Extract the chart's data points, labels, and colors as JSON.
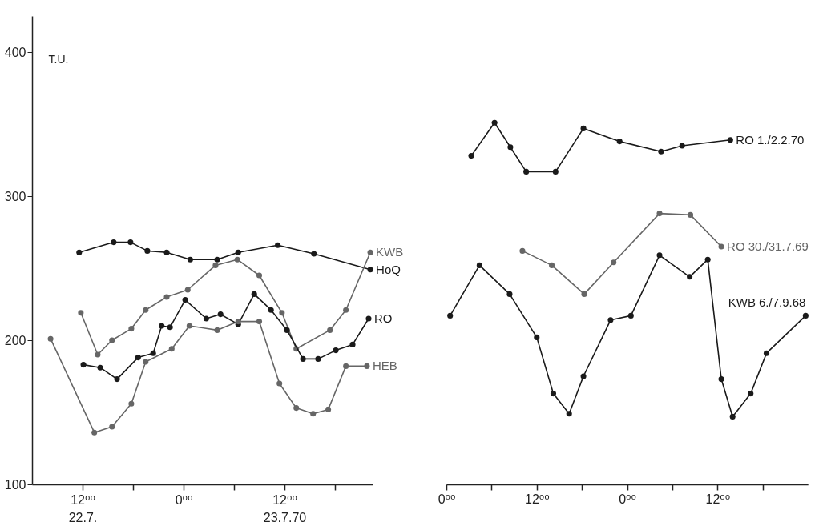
{
  "chart_data": [
    {
      "type": "line",
      "ylabel": "T.U.",
      "marker": "circle",
      "xlim": [
        "1970-07-22T06:00",
        "1970-07-23T22:30"
      ],
      "ylim": [
        100,
        425
      ],
      "xticks": [
        {
          "value": "1970-07-22T12:00",
          "label": "12⁰⁰\n22.7."
        },
        {
          "value": "1970-07-22T18:00",
          "label": null
        },
        {
          "value": "1970-07-23T00:00",
          "label": "0⁰⁰"
        },
        {
          "value": "1970-07-23T06:00",
          "label": null
        },
        {
          "value": "1970-07-23T12:00",
          "label": "12⁰⁰\n23.7.70"
        },
        {
          "value": "1970-07-23T18:00",
          "label": null
        }
      ],
      "yticks": [
        100,
        200,
        300,
        400
      ],
      "series": [
        {
          "name": "HoQ",
          "color": "#1a1a1a",
          "x": [
            "1970-07-22T11:36",
            "1970-07-22T15:42",
            "1970-07-22T17:42",
            "1970-07-22T19:42",
            "1970-07-22T22:00",
            "1970-07-23T00:48",
            "1970-07-23T04:00",
            "1970-07-23T06:30",
            "1970-07-23T11:12",
            "1970-07-23T15:30",
            "1970-07-23T22:12"
          ],
          "values": [
            261,
            268,
            268,
            262,
            261,
            256,
            256,
            261,
            266,
            260,
            249
          ]
        },
        {
          "name": "KWB",
          "color": "#666666",
          "x": [
            "1970-07-22T11:48",
            "1970-07-22T13:48",
            "1970-07-22T15:30",
            "1970-07-22T17:48",
            "1970-07-22T19:30",
            "1970-07-22T22:00",
            "1970-07-23T00:30",
            "1970-07-23T03:48",
            "1970-07-23T06:24",
            "1970-07-23T09:00",
            "1970-07-23T11:42",
            "1970-07-23T13:24",
            "1970-07-23T17:24",
            "1970-07-23T19:18",
            "1970-07-23T22:12"
          ],
          "values": [
            219,
            190,
            200,
            208,
            221,
            230,
            235,
            252,
            256,
            245,
            219,
            194,
            207,
            221,
            261
          ]
        },
        {
          "name": "RO",
          "color": "#1a1a1a",
          "x": [
            "1970-07-22T12:06",
            "1970-07-22T14:06",
            "1970-07-22T16:06",
            "1970-07-22T18:36",
            "1970-07-22T20:24",
            "1970-07-22T21:24",
            "1970-07-22T22:24",
            "1970-07-23T00:12",
            "1970-07-23T02:42",
            "1970-07-23T04:24",
            "1970-07-23T06:30",
            "1970-07-23T08:24",
            "1970-07-23T10:24",
            "1970-07-23T12:18",
            "1970-07-23T14:12",
            "1970-07-23T16:00",
            "1970-07-23T18:06",
            "1970-07-23T20:06",
            "1970-07-23T22:00"
          ],
          "values": [
            183,
            181,
            173,
            188,
            191,
            210,
            209,
            228,
            215,
            218,
            211,
            232,
            221,
            207,
            187,
            187,
            193,
            197,
            215
          ]
        },
        {
          "name": "HEB",
          "color": "#666666",
          "x": [
            "1970-07-22T08:12",
            "1970-07-22T13:24",
            "1970-07-22T15:30",
            "1970-07-22T17:48",
            "1970-07-22T19:30",
            "1970-07-22T22:36",
            "1970-07-23T00:42",
            "1970-07-23T04:00",
            "1970-07-23T06:30",
            "1970-07-23T09:00",
            "1970-07-23T11:24",
            "1970-07-23T13:24",
            "1970-07-23T15:24",
            "1970-07-23T17:12",
            "1970-07-23T19:18",
            "1970-07-23T21:48"
          ],
          "values": [
            201,
            136,
            140,
            156,
            185,
            194,
            210,
            207,
            213,
            213,
            170,
            153,
            149,
            152,
            182,
            182
          ]
        }
      ]
    },
    {
      "type": "line",
      "marker": "circle",
      "tick_labels": "x",
      "ylim": [
        100,
        400
      ],
      "yticks": [
        100,
        200,
        300,
        400
      ],
      "xlim": [
        "--02-01T00:00",
        "--02-03T00:00"
      ],
      "xticks": [
        {
          "value": "--02-01T00:00",
          "label": "0⁰⁰"
        },
        {
          "value": "--02-01T06:00",
          "label": null
        },
        {
          "value": "--02-01T12:00",
          "label": "12⁰⁰"
        },
        {
          "value": "--02-01T18:00",
          "label": null
        },
        {
          "value": "--02-02T00:00",
          "label": "0⁰⁰"
        },
        {
          "value": "--02-02T06:00",
          "label": null
        },
        {
          "value": "--02-02T12:00",
          "label": "12⁰⁰"
        },
        {
          "value": "--02-02T18:00",
          "label": null
        }
      ],
      "series": [
        {
          "name": "RO 1./2.2.70",
          "color": "#1a1a1a",
          "x": [
            "--02-01T03:18",
            "--02-01T06:24",
            "--02-01T08:30",
            "--02-01T10:36",
            "--02-01T14:30",
            "--02-01T18:12",
            "--02-01T23:00",
            "--02-02T04:30",
            "--02-02T07:18",
            "--02-02T13:42"
          ],
          "values": [
            328,
            351,
            334,
            317,
            317,
            347,
            338,
            331,
            335,
            339
          ]
        },
        {
          "name": "RO 30./31.7.69",
          "color": "#666666",
          "x": [
            "--02-01T10:06",
            "--02-01T14:00",
            "--02-01T18:18",
            "--02-01T22:12",
            "--02-02T04:18",
            "--02-02T08:24",
            "--02-02T12:30"
          ],
          "values": [
            262,
            252,
            232,
            254,
            288,
            287,
            265
          ]
        },
        {
          "name": "KWB 6./7.9.68",
          "color": "#1a1a1a",
          "x": [
            "--02-01T00:30",
            "--02-01T04:24",
            "--02-01T08:24",
            "--02-01T12:00",
            "--02-01T14:12",
            "--02-01T16:18",
            "--02-01T18:12",
            "--02-01T21:48",
            "--02-02T00:30",
            "--02-02T04:18",
            "--02-02T08:18",
            "--02-02T10:42",
            "--02-02T12:30",
            "--02-02T14:00",
            "--02-02T16:24",
            "--02-02T18:30",
            "--02-02T23:42"
          ],
          "values": [
            217,
            252,
            232,
            202,
            163,
            149,
            175,
            214,
            217,
            259,
            244,
            256,
            173,
            147,
            163,
            191,
            217
          ]
        }
      ]
    }
  ]
}
